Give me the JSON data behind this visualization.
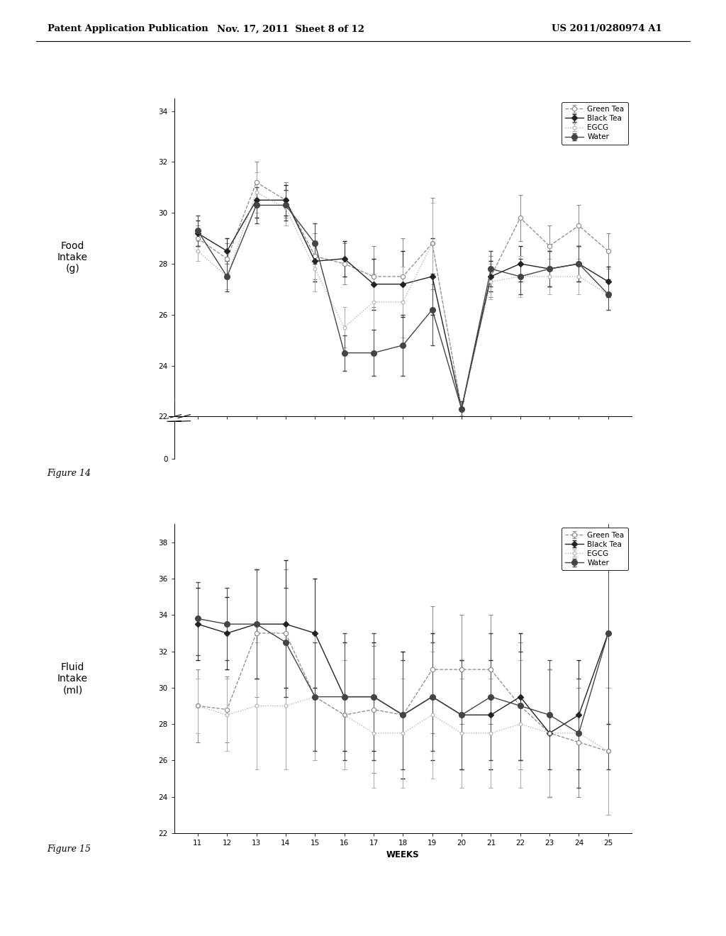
{
  "header_left": "Patent Application Publication",
  "header_mid": "Nov. 17, 2011  Sheet 8 of 12",
  "header_right": "US 2011/0280974 A1",
  "fig14_label": "Figure 14",
  "fig15_label": "Figure 15",
  "weeks": [
    11,
    12,
    13,
    14,
    15,
    16,
    17,
    18,
    19,
    20,
    21,
    22,
    23,
    24,
    25
  ],
  "food_green_tea": [
    29.0,
    28.2,
    31.2,
    30.5,
    28.3,
    28.0,
    27.5,
    27.5,
    28.8,
    22.3,
    27.5,
    29.8,
    28.7,
    29.5,
    28.5
  ],
  "food_black_tea": [
    29.2,
    28.5,
    30.5,
    30.5,
    28.1,
    28.2,
    27.2,
    27.2,
    27.5,
    22.3,
    27.5,
    28.0,
    27.8,
    28.0,
    27.3
  ],
  "food_egcg": [
    28.5,
    27.5,
    30.8,
    30.2,
    27.8,
    25.5,
    26.5,
    26.5,
    28.8,
    22.3,
    27.3,
    27.5,
    27.5,
    27.5,
    26.8
  ],
  "food_water": [
    29.3,
    27.5,
    30.3,
    30.3,
    28.8,
    24.5,
    24.5,
    24.8,
    26.2,
    22.3,
    27.8,
    27.5,
    27.8,
    28.0,
    26.8
  ],
  "food_green_err": [
    0.5,
    0.6,
    0.8,
    0.7,
    0.9,
    0.8,
    1.2,
    1.5,
    1.8,
    0.3,
    0.8,
    0.9,
    0.8,
    0.8,
    0.7
  ],
  "food_black_err": [
    0.5,
    0.5,
    0.7,
    0.6,
    0.8,
    0.7,
    1.0,
    1.3,
    1.5,
    0.3,
    0.6,
    0.7,
    0.7,
    0.7,
    0.6
  ],
  "food_egcg_err": [
    0.4,
    0.5,
    0.8,
    0.7,
    0.9,
    0.8,
    1.1,
    1.4,
    1.6,
    0.3,
    0.7,
    0.8,
    0.7,
    0.7,
    0.6
  ],
  "food_water_err": [
    0.6,
    0.6,
    0.7,
    0.6,
    0.8,
    0.7,
    0.9,
    1.2,
    1.4,
    0.3,
    0.7,
    0.7,
    0.7,
    0.7,
    0.6
  ],
  "food_ylabel": "Food\nIntake\n(g)",
  "food_ylim_main": [
    22,
    34.5
  ],
  "food_ylim_break": [
    0,
    1
  ],
  "food_yticks": [
    22,
    24,
    26,
    28,
    30,
    32,
    34
  ],
  "food_ytick0": 0,
  "fluid_green_tea": [
    29.0,
    28.8,
    33.0,
    33.0,
    29.5,
    28.5,
    28.8,
    28.5,
    31.0,
    31.0,
    31.0,
    29.0,
    27.5,
    27.0,
    26.5
  ],
  "fluid_black_tea": [
    33.5,
    33.0,
    33.5,
    33.5,
    33.0,
    29.5,
    29.5,
    28.5,
    29.5,
    28.5,
    28.5,
    29.5,
    27.5,
    28.5,
    33.0
  ],
  "fluid_egcg": [
    29.0,
    28.5,
    29.0,
    29.0,
    29.5,
    28.5,
    27.5,
    27.5,
    28.5,
    27.5,
    27.5,
    28.0,
    27.5,
    27.5,
    26.5
  ],
  "fluid_water": [
    33.8,
    33.5,
    33.5,
    32.5,
    29.5,
    29.5,
    29.5,
    28.5,
    29.5,
    28.5,
    29.5,
    29.0,
    28.5,
    27.5,
    33.0
  ],
  "fluid_green_err": [
    2.0,
    1.8,
    3.5,
    3.5,
    3.5,
    3.0,
    3.5,
    3.5,
    3.5,
    3.0,
    3.0,
    3.5,
    3.5,
    3.0,
    3.5
  ],
  "fluid_black_err": [
    2.0,
    2.0,
    3.0,
    3.5,
    3.0,
    3.0,
    3.0,
    3.5,
    3.5,
    3.0,
    3.0,
    3.5,
    3.5,
    3.0,
    5.0
  ],
  "fluid_egcg_err": [
    1.5,
    2.0,
    3.5,
    3.5,
    3.5,
    3.0,
    3.0,
    3.0,
    3.5,
    3.0,
    3.0,
    3.5,
    3.5,
    3.0,
    3.5
  ],
  "fluid_water_err": [
    2.0,
    2.0,
    3.0,
    3.0,
    3.0,
    3.5,
    3.5,
    3.0,
    3.0,
    3.0,
    3.5,
    3.0,
    3.0,
    3.0,
    7.5
  ],
  "fluid_ylabel": "Fluid\nIntake\n(ml)",
  "fluid_ylim": [
    22,
    39
  ],
  "fluid_yticks": [
    22,
    24,
    26,
    28,
    30,
    32,
    34,
    36,
    38
  ],
  "xlabel": "WEEKS",
  "legend_labels": [
    "Green Tea",
    "Black Tea",
    "EGCG",
    "Water"
  ],
  "color_green": "#888888",
  "color_black": "#222222",
  "color_egcg": "#aaaaaa",
  "color_water": "#444444",
  "bg_color": "#ffffff"
}
